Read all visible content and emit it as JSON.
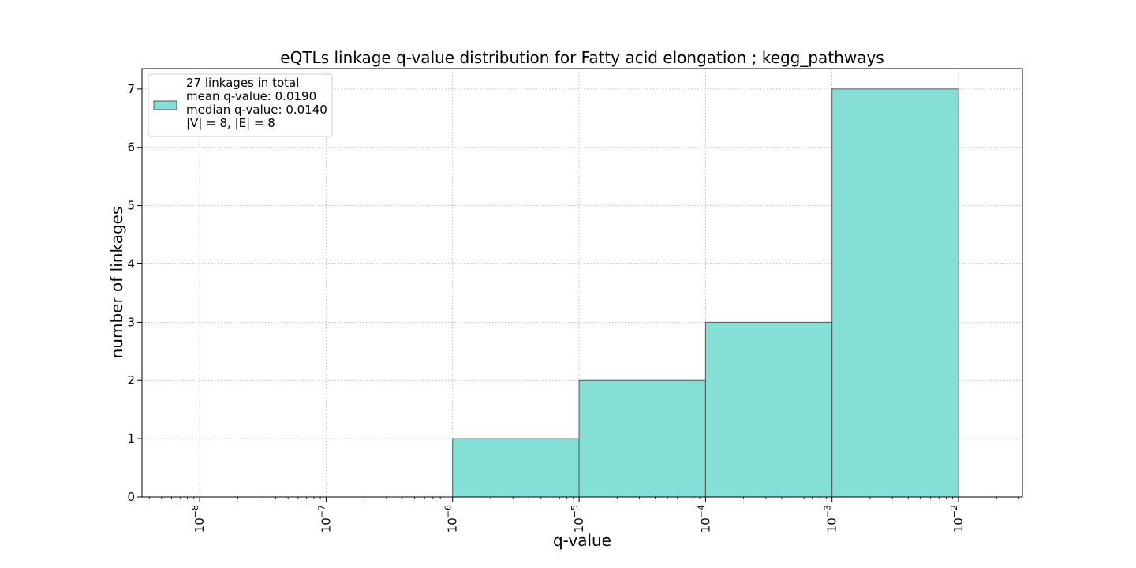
{
  "chart_data": {
    "type": "bar",
    "title": "eQTLs linkage q-value distribution for Fatty acid elongation ; kegg_pathways",
    "xlabel": "q-value",
    "ylabel": "number of linkages",
    "x_scale": "log",
    "xlim": [
      3.5e-09,
      0.032
    ],
    "ylim": [
      0,
      7.35
    ],
    "grid": true,
    "bins": [
      {
        "from": 1e-06,
        "to": 1e-05,
        "count": 1
      },
      {
        "from": 1e-05,
        "to": 0.0001,
        "count": 2
      },
      {
        "from": 0.0001,
        "to": 0.001,
        "count": 3
      },
      {
        "from": 0.001,
        "to": 0.01,
        "count": 7
      }
    ],
    "x_ticks": [
      {
        "value": 1e-08,
        "base": "10",
        "exp": "−8"
      },
      {
        "value": 1e-07,
        "base": "10",
        "exp": "−7"
      },
      {
        "value": 1e-06,
        "base": "10",
        "exp": "−6"
      },
      {
        "value": 1e-05,
        "base": "10",
        "exp": "−5"
      },
      {
        "value": 0.0001,
        "base": "10",
        "exp": "−4"
      },
      {
        "value": 0.001,
        "base": "10",
        "exp": "−3"
      },
      {
        "value": 0.01,
        "base": "10",
        "exp": "−2"
      }
    ],
    "y_ticks": [
      0,
      1,
      2,
      3,
      4,
      5,
      6,
      7
    ],
    "legend": {
      "placement": "top-left",
      "lines": [
        "27 linkages in total",
        "mean q-value: 0.0190",
        "median q-value: 0.0140",
        "|V| = 8, |E| = 8"
      ]
    },
    "colors": {
      "bar_fill": "#84e0d6",
      "bar_edge": "#555555"
    }
  }
}
